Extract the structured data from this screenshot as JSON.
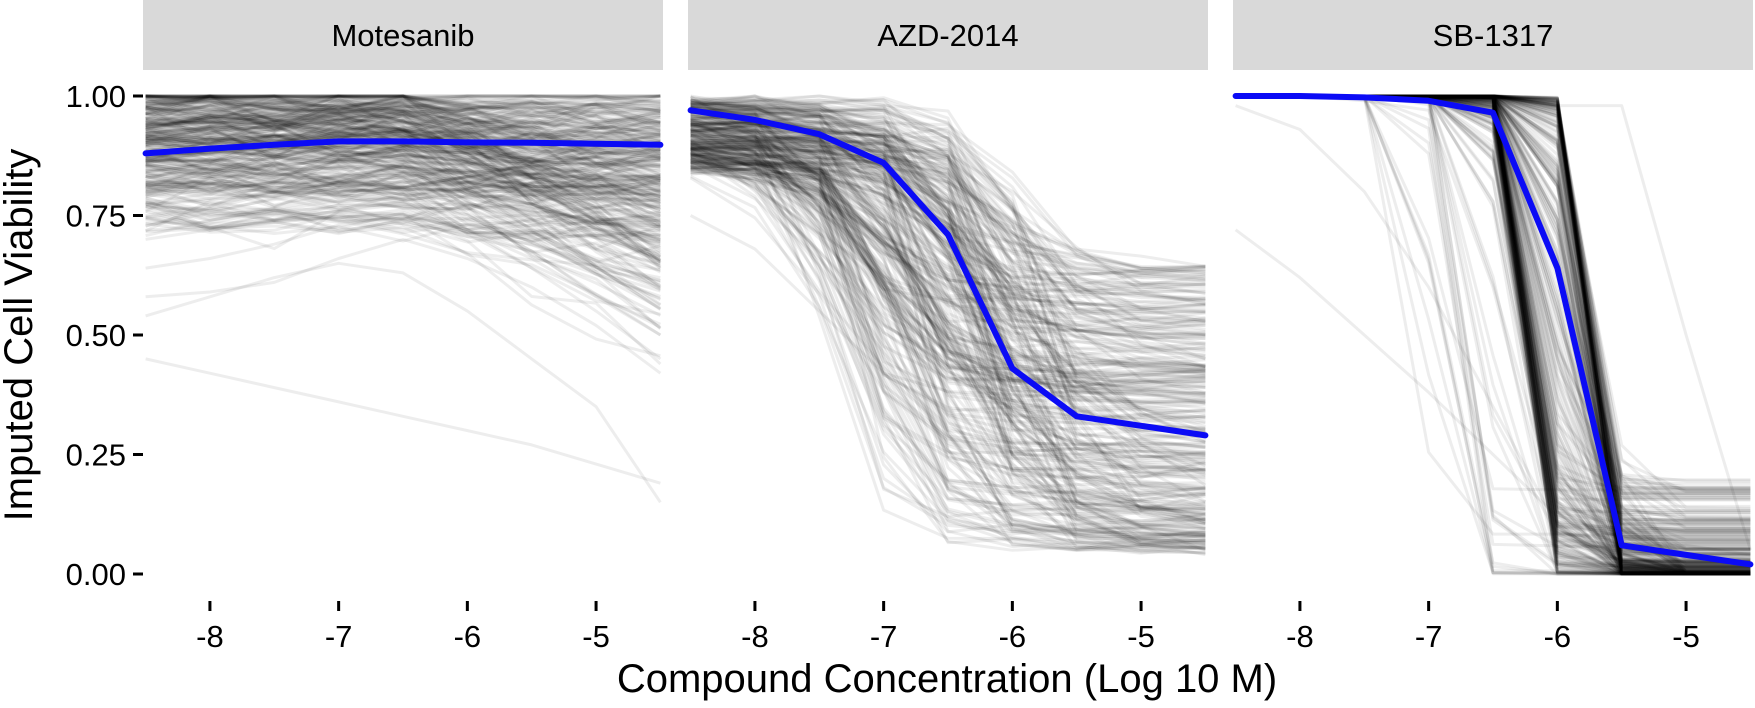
{
  "chart_data": {
    "type": "line",
    "title": "",
    "xlabel": "Compound Concentration (Log 10 M)",
    "ylabel": "Imputed Cell Viability",
    "ylim": [
      0,
      1
    ],
    "y_ticks": [
      "0.00",
      "0.25",
      "0.50",
      "0.75",
      "1.00"
    ],
    "x_ticks": [
      "-8",
      "-7",
      "-6",
      "-5"
    ],
    "grid": false,
    "legend": "none",
    "colors": {
      "mean_line": "#0b0bf5",
      "cell_lines": "#000000",
      "strip": "#d9d9d9"
    },
    "facets": [
      {
        "name": "Motesanib",
        "xlim": [
          -8.52,
          -4.48
        ],
        "x": [
          -8.5,
          -8.0,
          -7.5,
          -7.0,
          -6.5,
          -6.0,
          -5.5,
          -5.0,
          -4.5
        ],
        "mean": [
          0.88,
          0.89,
          0.898,
          0.905,
          0.905,
          0.903,
          0.902,
          0.9,
          0.898
        ],
        "example_lines": [
          [
            0.45,
            0.42,
            0.39,
            0.36,
            0.33,
            0.3,
            0.27,
            0.23,
            0.19
          ],
          [
            0.54,
            0.58,
            0.62,
            0.65,
            0.63,
            0.55,
            0.45,
            0.35,
            0.15
          ],
          [
            0.58,
            0.59,
            0.61,
            0.66,
            0.7,
            0.66,
            0.6,
            0.52,
            0.42
          ],
          [
            0.64,
            0.66,
            0.69,
            0.73,
            0.75,
            0.72,
            0.64,
            0.55,
            0.45
          ],
          [
            0.7,
            0.72,
            0.74,
            0.76,
            0.78,
            0.72,
            0.66,
            0.58,
            0.5
          ],
          [
            0.75,
            0.77,
            0.8,
            0.82,
            0.84,
            0.82,
            0.8,
            0.75,
            0.7
          ]
        ]
      },
      {
        "name": "AZD-2014",
        "xlim": [
          -8.52,
          -4.48
        ],
        "x": [
          -8.5,
          -8.0,
          -7.5,
          -7.0,
          -6.5,
          -6.0,
          -5.5,
          -5.0,
          -4.5
        ],
        "mean": [
          0.97,
          0.95,
          0.92,
          0.86,
          0.71,
          0.43,
          0.33,
          0.31,
          0.29
        ],
        "example_lines": [
          [
            0.75,
            0.68,
            0.55,
            0.42,
            0.3,
            0.2,
            0.15,
            0.1,
            0.05
          ],
          [
            0.9,
            0.86,
            0.8,
            0.7,
            0.5,
            0.25,
            0.18,
            0.15,
            0.12
          ],
          [
            0.95,
            0.93,
            0.9,
            0.85,
            0.75,
            0.6,
            0.55,
            0.5,
            0.45
          ],
          [
            0.98,
            0.97,
            0.96,
            0.93,
            0.85,
            0.68,
            0.65,
            0.63,
            0.62
          ]
        ]
      },
      {
        "name": "SB-1317",
        "xlim": [
          -8.52,
          -4.48
        ],
        "x": [
          -8.5,
          -8.0,
          -7.5,
          -7.0,
          -6.5,
          -6.0,
          -5.5,
          -5.0,
          -4.5
        ],
        "mean": [
          1.0,
          1.0,
          0.997,
          0.99,
          0.965,
          0.64,
          0.06,
          0.04,
          0.02
        ],
        "example_lines": [
          [
            0.72,
            0.62,
            0.5,
            0.38,
            0.25,
            0.12,
            0.06,
            0.04,
            0.02
          ],
          [
            0.98,
            0.93,
            0.8,
            0.6,
            0.35,
            0.1,
            0.08,
            0.06,
            0.04
          ],
          [
            1.0,
            1.0,
            0.99,
            0.97,
            0.6,
            0.07,
            0.05,
            0.04,
            0.03
          ],
          [
            1.0,
            1.0,
            1.0,
            1.0,
            1.0,
            0.98,
            0.98,
            0.5,
            0.05
          ]
        ]
      }
    ]
  }
}
